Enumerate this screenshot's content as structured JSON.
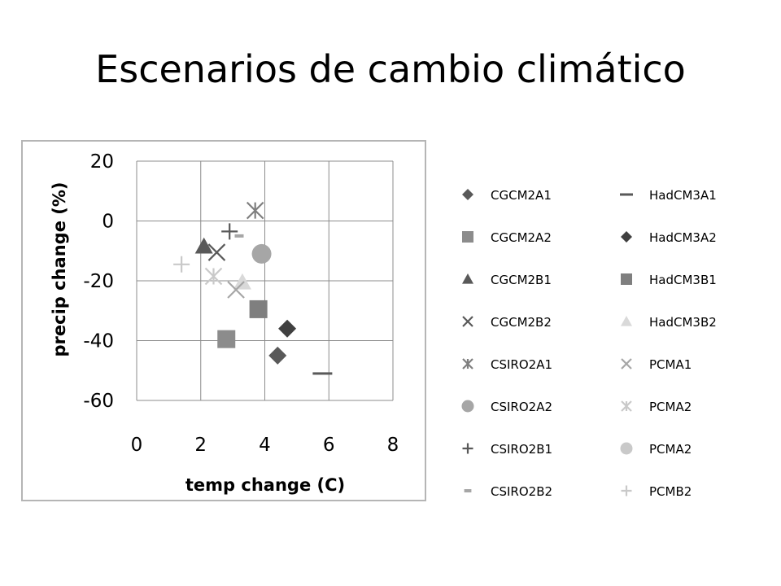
{
  "slide": {
    "title": "Escenarios de cambio climático"
  },
  "chart_data": {
    "type": "scatter",
    "title": "",
    "xlabel": "temp change (C)",
    "ylabel": "precip change (%)",
    "xlim": [
      0,
      8
    ],
    "ylim": [
      -60,
      20
    ],
    "x_ticks": [
      "0",
      "2",
      "4",
      "6",
      "8"
    ],
    "y_ticks": [
      "20",
      "0",
      "-20",
      "-40",
      "-60"
    ],
    "grid": true,
    "legend_position": "right",
    "series": [
      {
        "name": "CGCM2A1",
        "marker": "diamond",
        "color": "#595959",
        "points": [
          [
            4.4,
            -45
          ]
        ]
      },
      {
        "name": "CGCM2A2",
        "marker": "square",
        "color": "#8c8c8c",
        "points": [
          [
            2.8,
            -39.5
          ]
        ]
      },
      {
        "name": "CGCM2B1",
        "marker": "triangle",
        "color": "#595959",
        "points": [
          [
            2.1,
            -8.5
          ]
        ]
      },
      {
        "name": "CGCM2B2",
        "marker": "x",
        "color": "#595959",
        "points": [
          [
            2.5,
            -10.5
          ]
        ]
      },
      {
        "name": "CSIRO2A1",
        "marker": "asterisk",
        "color": "#7f7f7f",
        "points": [
          [
            3.7,
            3.5
          ]
        ]
      },
      {
        "name": "CSIRO2A2",
        "marker": "circle",
        "color": "#a6a6a6",
        "points": [
          [
            3.9,
            -11
          ]
        ]
      },
      {
        "name": "CSIRO2B1",
        "marker": "plus",
        "color": "#595959",
        "points": [
          [
            2.9,
            -3.5
          ]
        ]
      },
      {
        "name": "CSIRO2B2",
        "marker": "short-dash",
        "color": "#a6a6a6",
        "points": [
          [
            3.2,
            -5
          ]
        ]
      },
      {
        "name": "HadCM3A1",
        "marker": "dash",
        "color": "#595959",
        "points": [
          [
            5.8,
            -51
          ]
        ]
      },
      {
        "name": "HadCM3A2",
        "marker": "diamond",
        "color": "#404040",
        "points": [
          [
            4.7,
            -36
          ]
        ]
      },
      {
        "name": "HadCM3B1",
        "marker": "square",
        "color": "#7f7f7f",
        "points": [
          [
            3.8,
            -29.5
          ]
        ]
      },
      {
        "name": "HadCM3B2",
        "marker": "triangle",
        "color": "#d9d9d9",
        "points": [
          [
            3.3,
            -20.5
          ]
        ]
      },
      {
        "name": "PCMA1",
        "marker": "x",
        "color": "#a6a6a6",
        "points": [
          [
            3.1,
            -23
          ]
        ]
      },
      {
        "name": "PCMA2",
        "marker": "asterisk",
        "color": "#c9c9c9",
        "points": [
          [
            2.4,
            -18.5
          ]
        ]
      },
      {
        "name": "PCMA2",
        "marker": "circle",
        "color": "#c9c9c9",
        "points": []
      },
      {
        "name": "PCMB2",
        "marker": "plus",
        "color": "#c9c9c9",
        "points": [
          [
            1.4,
            -14.5
          ]
        ]
      }
    ]
  }
}
